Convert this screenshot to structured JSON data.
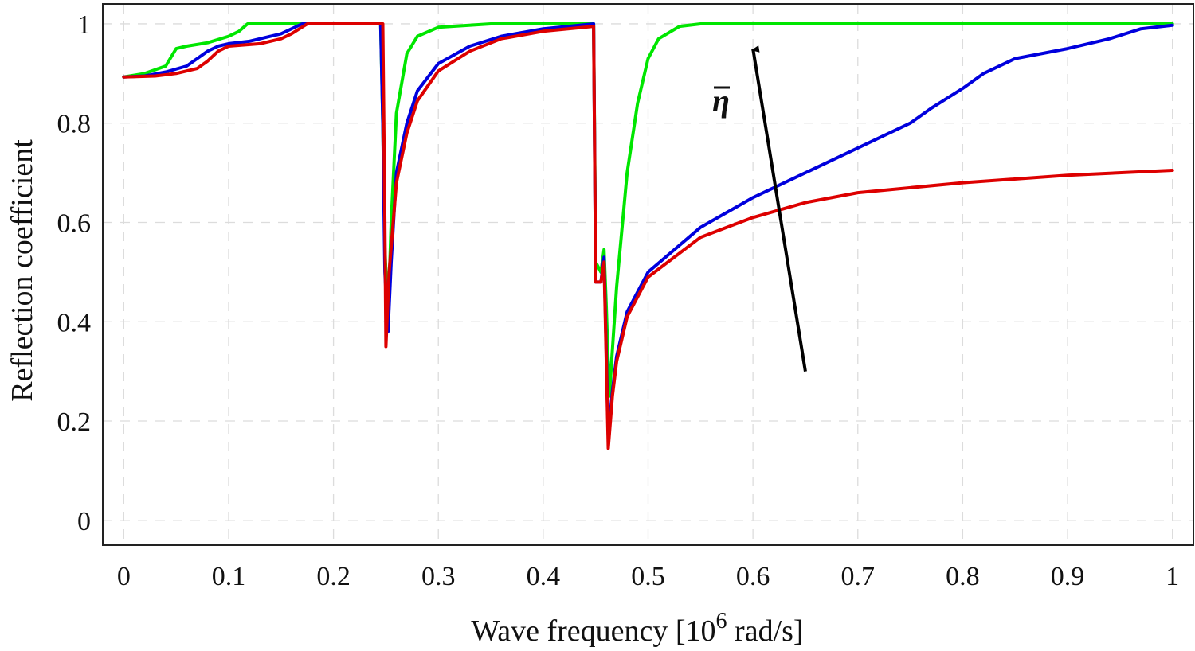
{
  "chart_data": {
    "type": "line",
    "title": "",
    "xlabel": "Wave frequency [10",
    "xlabel_sup": "6",
    "xlabel_unit": " rad/s]",
    "ylabel": "Reflection coefficient",
    "xlim": [
      -0.02,
      1.02
    ],
    "ylim": [
      -0.05,
      1.04
    ],
    "x_ticks": [
      0,
      0.1,
      0.2,
      0.3,
      0.4,
      0.5,
      0.6,
      0.7,
      0.8,
      0.9,
      1
    ],
    "x_tick_labels": [
      "0",
      "0.1",
      "0.2",
      "0.3",
      "0.4",
      "0.5",
      "0.6",
      "0.7",
      "0.8",
      "0.9",
      "1"
    ],
    "y_ticks": [
      0,
      0.2,
      0.4,
      0.6,
      0.8,
      1
    ],
    "y_tick_labels": [
      "0",
      "0.2",
      "0.4",
      "0.6",
      "0.8",
      "1"
    ],
    "grid": true,
    "legend": "none",
    "annotation": {
      "text": "η",
      "overbar": true,
      "arrow_from": [
        0.65,
        0.3
      ],
      "arrow_to": [
        0.6,
        0.95
      ]
    },
    "series": [
      {
        "color": "#00e600",
        "points": [
          [
            0,
            0.893
          ],
          [
            0.02,
            0.9
          ],
          [
            0.04,
            0.915
          ],
          [
            0.05,
            0.95
          ],
          [
            0.06,
            0.955
          ],
          [
            0.08,
            0.962
          ],
          [
            0.1,
            0.975
          ],
          [
            0.11,
            0.985
          ],
          [
            0.118,
            1.0
          ],
          [
            0.2,
            1.0
          ],
          [
            0.245,
            1.0
          ],
          [
            0.247,
            0.8
          ],
          [
            0.249,
            0.55
          ],
          [
            0.252,
            0.4
          ],
          [
            0.255,
            0.6
          ],
          [
            0.26,
            0.82
          ],
          [
            0.27,
            0.94
          ],
          [
            0.28,
            0.975
          ],
          [
            0.3,
            0.993
          ],
          [
            0.35,
            1.0
          ],
          [
            0.448,
            1.0
          ],
          [
            0.45,
            0.52
          ],
          [
            0.455,
            0.5
          ],
          [
            0.458,
            0.545
          ],
          [
            0.46,
            0.44
          ],
          [
            0.463,
            0.25
          ],
          [
            0.47,
            0.47
          ],
          [
            0.48,
            0.7
          ],
          [
            0.49,
            0.84
          ],
          [
            0.5,
            0.93
          ],
          [
            0.51,
            0.97
          ],
          [
            0.53,
            0.995
          ],
          [
            0.55,
            1.0
          ],
          [
            1.0,
            1.0
          ]
        ]
      },
      {
        "color": "#0000dd",
        "points": [
          [
            0,
            0.893
          ],
          [
            0.02,
            0.895
          ],
          [
            0.04,
            0.903
          ],
          [
            0.06,
            0.915
          ],
          [
            0.08,
            0.945
          ],
          [
            0.09,
            0.955
          ],
          [
            0.1,
            0.96
          ],
          [
            0.12,
            0.965
          ],
          [
            0.15,
            0.98
          ],
          [
            0.17,
            1.0
          ],
          [
            0.245,
            1.0
          ],
          [
            0.247,
            0.8
          ],
          [
            0.249,
            0.5
          ],
          [
            0.252,
            0.38
          ],
          [
            0.255,
            0.52
          ],
          [
            0.26,
            0.7
          ],
          [
            0.27,
            0.8
          ],
          [
            0.28,
            0.865
          ],
          [
            0.3,
            0.92
          ],
          [
            0.33,
            0.955
          ],
          [
            0.36,
            0.975
          ],
          [
            0.4,
            0.99
          ],
          [
            0.448,
            1.0
          ],
          [
            0.45,
            0.48
          ],
          [
            0.455,
            0.48
          ],
          [
            0.458,
            0.53
          ],
          [
            0.462,
            0.17
          ],
          [
            0.466,
            0.26
          ],
          [
            0.47,
            0.33
          ],
          [
            0.48,
            0.42
          ],
          [
            0.5,
            0.5
          ],
          [
            0.55,
            0.59
          ],
          [
            0.6,
            0.65
          ],
          [
            0.65,
            0.7
          ],
          [
            0.7,
            0.75
          ],
          [
            0.75,
            0.8
          ],
          [
            0.77,
            0.83
          ],
          [
            0.8,
            0.87
          ],
          [
            0.82,
            0.9
          ],
          [
            0.85,
            0.93
          ],
          [
            0.9,
            0.95
          ],
          [
            0.94,
            0.97
          ],
          [
            0.97,
            0.99
          ],
          [
            1.0,
            0.997
          ]
        ]
      },
      {
        "color": "#dd0000",
        "points": [
          [
            0,
            0.893
          ],
          [
            0.03,
            0.895
          ],
          [
            0.05,
            0.9
          ],
          [
            0.07,
            0.91
          ],
          [
            0.08,
            0.925
          ],
          [
            0.09,
            0.945
          ],
          [
            0.1,
            0.955
          ],
          [
            0.13,
            0.96
          ],
          [
            0.15,
            0.97
          ],
          [
            0.16,
            0.98
          ],
          [
            0.175,
            1.0
          ],
          [
            0.247,
            1.0
          ],
          [
            0.249,
            0.6
          ],
          [
            0.25,
            0.35
          ],
          [
            0.253,
            0.5
          ],
          [
            0.26,
            0.68
          ],
          [
            0.27,
            0.78
          ],
          [
            0.28,
            0.845
          ],
          [
            0.3,
            0.905
          ],
          [
            0.33,
            0.945
          ],
          [
            0.36,
            0.97
          ],
          [
            0.4,
            0.985
          ],
          [
            0.448,
            0.995
          ],
          [
            0.45,
            0.48
          ],
          [
            0.455,
            0.48
          ],
          [
            0.458,
            0.52
          ],
          [
            0.462,
            0.145
          ],
          [
            0.466,
            0.25
          ],
          [
            0.47,
            0.32
          ],
          [
            0.48,
            0.41
          ],
          [
            0.5,
            0.49
          ],
          [
            0.55,
            0.57
          ],
          [
            0.6,
            0.61
          ],
          [
            0.65,
            0.64
          ],
          [
            0.7,
            0.66
          ],
          [
            0.8,
            0.68
          ],
          [
            0.9,
            0.695
          ],
          [
            1.0,
            0.705
          ]
        ]
      }
    ]
  }
}
